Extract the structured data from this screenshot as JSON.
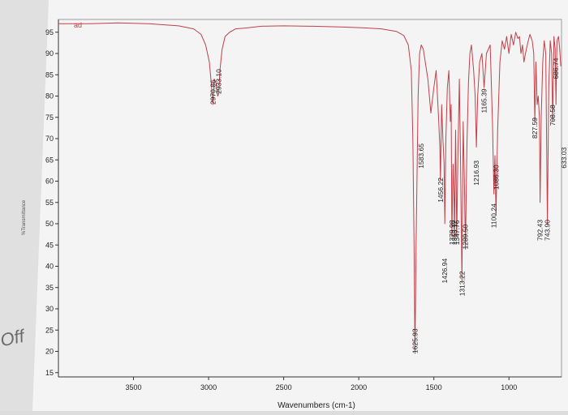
{
  "colors": {
    "background": "#dcdcdc",
    "paper": "#f4f4f4",
    "spectrum_line": "#c0404a",
    "text": "#222222"
  },
  "tag": "ad",
  "side_text": "%Transmittance",
  "pen_mark": "Off",
  "chart_data": {
    "type": "line",
    "title": "",
    "xlabel": "Wavenumbers (cm-1)",
    "ylabel": "%Transmittance",
    "x_reversed": true,
    "xlim": [
      4000,
      650
    ],
    "ylim": [
      14,
      98
    ],
    "x_ticks": [
      3500,
      3000,
      2500,
      2000,
      1500,
      1000
    ],
    "y_ticks": [
      15,
      20,
      25,
      30,
      35,
      40,
      45,
      50,
      55,
      60,
      65,
      70,
      75,
      80,
      85,
      90,
      95
    ],
    "grid": false,
    "legend": "none",
    "series": [
      {
        "x": [
          4000,
          3800,
          3600,
          3400,
          3200,
          3100,
          3050,
          3020,
          2995,
          2985,
          2975,
          2970.86,
          2962,
          2950,
          2940,
          2933.1,
          2925,
          2910,
          2890,
          2860,
          2820,
          2750,
          2650,
          2500,
          2300,
          2100,
          1950,
          1850,
          1750,
          1700,
          1670,
          1650,
          1640,
          1632,
          1625.93,
          1618,
          1605,
          1595,
          1583.65,
          1570,
          1540,
          1520,
          1500,
          1485,
          1470,
          1460,
          1456.22,
          1448,
          1440,
          1432,
          1426.94,
          1420,
          1410,
          1400,
          1390,
          1385,
          1379.98,
          1372,
          1366,
          1363.17,
          1355,
          1347.76,
          1340,
          1330,
          1322,
          1313.22,
          1305,
          1297,
          1289.5,
          1280,
          1270,
          1260,
          1250,
          1235,
          1225,
          1216.93,
          1208,
          1195,
          1180,
          1165.39,
          1150,
          1125,
          1110,
          1100.24,
          1093,
          1086.3,
          1075,
          1060,
          1045,
          1030,
          1015,
          1000,
          985,
          970,
          955,
          940,
          930,
          920,
          910,
          900,
          890,
          875,
          860,
          845,
          835,
          827.59,
          820,
          812,
          805,
          797,
          792.43,
          785,
          775,
          765,
          755,
          743.9,
          735,
          725,
          716,
          708.58,
          700,
          692,
          686.74,
          680,
          670,
          662,
          655
        ],
        "y": [
          97,
          97,
          97.2,
          97,
          96.5,
          95.8,
          94.5,
          92,
          88,
          84,
          80,
          78,
          84,
          83,
          80,
          80.5,
          86,
          91,
          94,
          95,
          95.8,
          96,
          96.4,
          96.5,
          96.4,
          96.2,
          96,
          95.8,
          95.2,
          94.2,
          92,
          86,
          70,
          45,
          19.5,
          45,
          80,
          90,
          92,
          91,
          84,
          76,
          82,
          86,
          76,
          68,
          60,
          78,
          70,
          64,
          50,
          70,
          82,
          86,
          74,
          78,
          47,
          64,
          56,
          47,
          72,
          47,
          66,
          84,
          64,
          36.5,
          74,
          60,
          44,
          68,
          83,
          90,
          92,
          86,
          80,
          68,
          80,
          88,
          90,
          82,
          90,
          92,
          74,
          57,
          66,
          52,
          72,
          88,
          93,
          91,
          94,
          90,
          94.5,
          92,
          95,
          93.5,
          94,
          90,
          92,
          88,
          90,
          92.5,
          94.5,
          93,
          90,
          74,
          88,
          78,
          80,
          75,
          55,
          75,
          88,
          93,
          90,
          50,
          82,
          93,
          90,
          74,
          94,
          91,
          78,
          93,
          94,
          91,
          87
        ]
      }
    ],
    "peak_labels": [
      {
        "x": 2970.86,
        "y": 78,
        "text": "2970.86"
      },
      {
        "x": 2933.1,
        "y": 80.5,
        "text": "2933.10"
      },
      {
        "x": 1625.93,
        "y": 19.5,
        "text": "1625.93"
      },
      {
        "x": 1583.65,
        "y": 63,
        "text": "1583.65"
      },
      {
        "x": 1456.22,
        "y": 55,
        "text": "1456.22"
      },
      {
        "x": 1426.94,
        "y": 36,
        "text": "1426.94"
      },
      {
        "x": 1379.98,
        "y": 45,
        "text": "1379.98"
      },
      {
        "x": 1363.17,
        "y": 45,
        "text": "1363.17"
      },
      {
        "x": 1347.76,
        "y": 45,
        "text": "1347.76"
      },
      {
        "x": 1313.22,
        "y": 33,
        "text": "1313.22"
      },
      {
        "x": 1289.5,
        "y": 44,
        "text": "1289.50"
      },
      {
        "x": 1216.93,
        "y": 59,
        "text": "1216.93"
      },
      {
        "x": 1165.39,
        "y": 76,
        "text": "1165.39"
      },
      {
        "x": 1100.24,
        "y": 49,
        "text": "1100.24"
      },
      {
        "x": 1086.3,
        "y": 58,
        "text": "1086.30"
      },
      {
        "x": 827.59,
        "y": 70,
        "text": "827.59"
      },
      {
        "x": 792.43,
        "y": 46,
        "text": "792.43"
      },
      {
        "x": 743.9,
        "y": 46,
        "text": "743.90"
      },
      {
        "x": 708.58,
        "y": 73,
        "text": "708.58"
      },
      {
        "x": 686.74,
        "y": 84,
        "text": "686.74"
      },
      {
        "x": 633.03,
        "y": 63,
        "text": "633.03"
      }
    ]
  }
}
